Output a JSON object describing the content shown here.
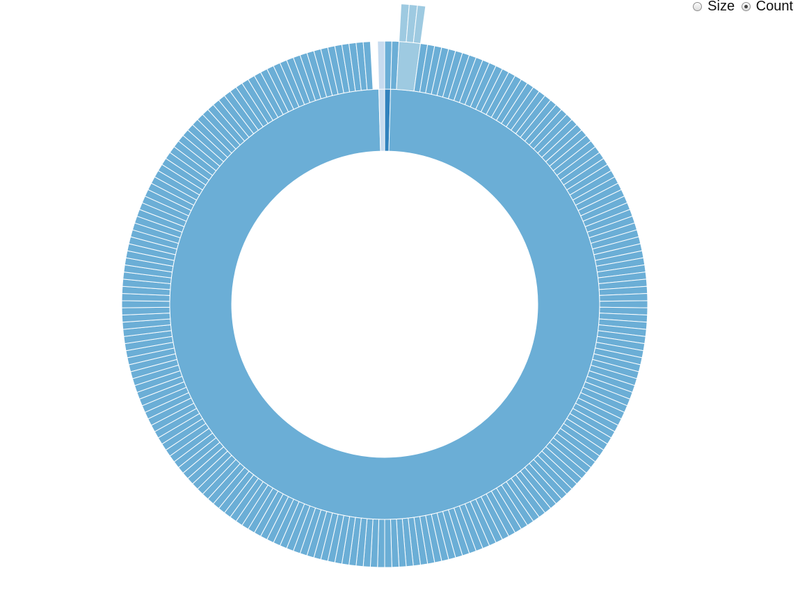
{
  "controls": {
    "options": [
      {
        "label": "Size",
        "checked": false
      },
      {
        "label": "Count",
        "checked": true
      }
    ]
  },
  "chart_data": {
    "type": "sunburst",
    "value_mode": "Count",
    "colors": {
      "main": "#6baed6",
      "secondary": "#9ecae1",
      "light": "#c6dbef",
      "dark": "#3182bd",
      "stroke": "#ffffff"
    },
    "rings": [
      {
        "depth": 1,
        "segments": [
          {
            "count": 1,
            "color": "dark"
          },
          {
            "count": 228,
            "color": "main"
          },
          {
            "count": 1,
            "color": "light"
          }
        ]
      },
      {
        "depth": 2,
        "segments": [
          {
            "count": 1,
            "color": "main"
          },
          {
            "count": 1,
            "color": "main"
          },
          {
            "count": 3,
            "color": "secondary"
          },
          {
            "count": 1,
            "color": "main",
            "repeat": 223
          },
          {
            "count": 1,
            "gap": true
          },
          {
            "count": 1,
            "color": "light"
          }
        ]
      },
      {
        "depth": 3,
        "segments": [
          {
            "count": 2,
            "gap": true
          },
          {
            "count": 1,
            "color": "secondary"
          },
          {
            "count": 1,
            "color": "secondary"
          },
          {
            "count": 1,
            "color": "secondary"
          }
        ]
      }
    ]
  }
}
